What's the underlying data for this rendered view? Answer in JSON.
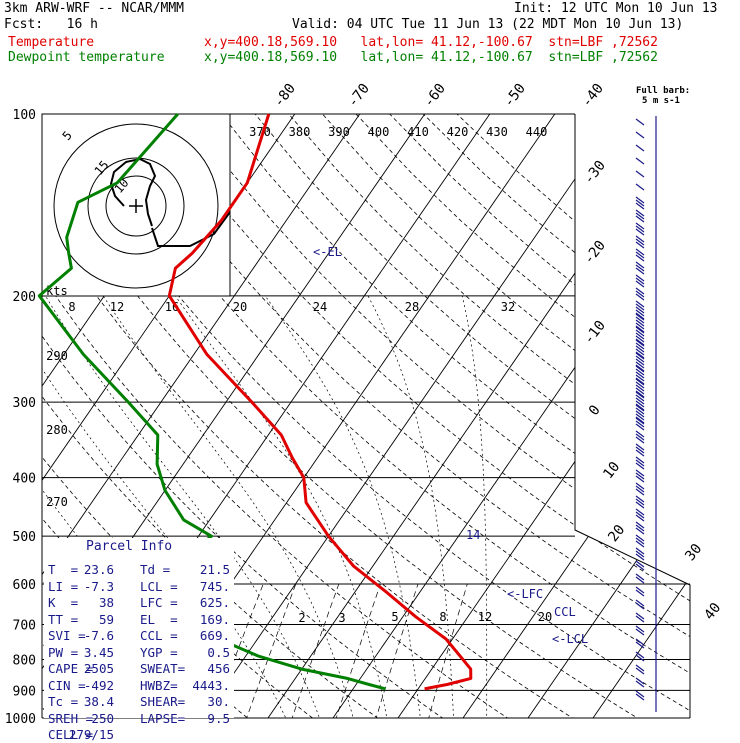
{
  "header": {
    "model": "3km ARW-WRF -- NCAR/MMM",
    "init": "Init: 12 UTC Mon 10 Jun 13",
    "fcst": "Fcst:   16 h",
    "valid": "Valid: 04 UTC Tue 11 Jun 13 (22 MDT Mon 10 Jun 13)",
    "temp_label": "Temperature",
    "dew_label": "Dewpoint temperature",
    "temp_loc": "x,y=400.18,569.10   lat,lon= 41.12,-100.67  stn=LBF ,72562",
    "dew_loc": "x,y=400.18,569.10   lat,lon= 41.12,-100.67  stn=LBF ,72562"
  },
  "colors": {
    "temperature": "#e00000",
    "dewpoint": "#008000",
    "parcel_text": "#1a1a8a",
    "barb": "#1a1a8a"
  },
  "chart_data": {
    "type": "line",
    "title": "",
    "ylabel": "",
    "y_scale": "log-pressure",
    "pressure_ticks": [
      100,
      200,
      300,
      400,
      500,
      600,
      700,
      800,
      900,
      1000
    ],
    "isotherm_labels": [
      "-80",
      "-70",
      "-60",
      "-50",
      "-40",
      "-30",
      "-20",
      "-10",
      "0",
      "10",
      "20",
      "30",
      "40"
    ],
    "theta_labels": [
      "370",
      "380",
      "390",
      "400",
      "410",
      "420",
      "430",
      "440"
    ],
    "theta_left_labels": [
      "290",
      "280",
      "270"
    ],
    "mixing_ratio_labels": [
      "2",
      "3",
      "5",
      "8",
      "12",
      "20"
    ],
    "hodo_speed_labels": [
      "8",
      "12",
      "16",
      "20",
      "24",
      "28",
      "32"
    ],
    "hodo_unit": "kts",
    "hodo_ring_labels": [
      "5",
      "15",
      "10"
    ],
    "level_markers": [
      "<-EL",
      "<-LFC",
      "<-LCL",
      "CCL"
    ],
    "marker_extra": "14",
    "series": [
      {
        "name": "Temperature",
        "pressure_hpa": [
          100,
          130,
          150,
          170,
          180,
          200,
          250,
          300,
          340,
          370,
          400,
          440,
          500,
          560,
          620,
          680,
          740,
          790,
          830,
          860,
          880,
          890,
          895
        ],
        "temp_c": [
          -64,
          -60,
          -60,
          -61,
          -62,
          -60,
          -48,
          -36,
          -28,
          -24,
          -20,
          -17,
          -10,
          -3,
          5,
          12,
          19,
          23,
          26,
          27,
          24,
          22,
          21
        ]
      },
      {
        "name": "Dewpoint temperature",
        "pressure_hpa": [
          100,
          130,
          140,
          160,
          170,
          180,
          200,
          250,
          300,
          340,
          380,
          420,
          470,
          500,
          540,
          580,
          620,
          680,
          740,
          790,
          830,
          860,
          880,
          895
        ],
        "temp_c": [
          -78,
          -80,
          -84,
          -82,
          -80,
          -78,
          -80,
          -67,
          -55,
          -47,
          -44,
          -40,
          -34,
          -28,
          -30,
          -32,
          -31,
          -23,
          -16,
          -8,
          0,
          8,
          12,
          15
        ]
      }
    ],
    "wind_barbs": {
      "label_top": "Full barb:",
      "label_bottom": "5 m s-1"
    }
  },
  "parcel": {
    "title": "Parcel Info",
    "rows": [
      {
        "a": "T  =",
        "av": "23.6",
        "b": "Td =",
        "bv": "21.5"
      },
      {
        "a": "LI =",
        "av": "-7.3",
        "b": "LCL =",
        "bv": "745."
      },
      {
        "a": "K  =",
        "av": "38",
        "b": "LFC =",
        "bv": "625."
      },
      {
        "a": "TT =",
        "av": "59",
        "b": "EL  =",
        "bv": "169."
      },
      {
        "a": "SVI =",
        "av": "-7.6",
        "b": "CCL =",
        "bv": "669."
      },
      {
        "a": "PW =",
        "av": "3.45",
        "b": "YGP =",
        "bv": "0.5"
      },
      {
        "a": "CAPE =",
        "av": "2505",
        "b": "SWEAT=",
        "bv": "456"
      },
      {
        "a": "CIN =",
        "av": "-492",
        "b": "HWBZ=",
        "bv": "4443."
      },
      {
        "a": "Tc =",
        "av": "38.4",
        "b": "SHEAR=",
        "bv": "30."
      },
      {
        "a": "SREH =",
        "av": "250",
        "b": "LAPSE=",
        "bv": "9.5"
      },
      {
        "a": "CELL =",
        "av": "279/15",
        "b": "",
        "bv": ""
      }
    ]
  }
}
